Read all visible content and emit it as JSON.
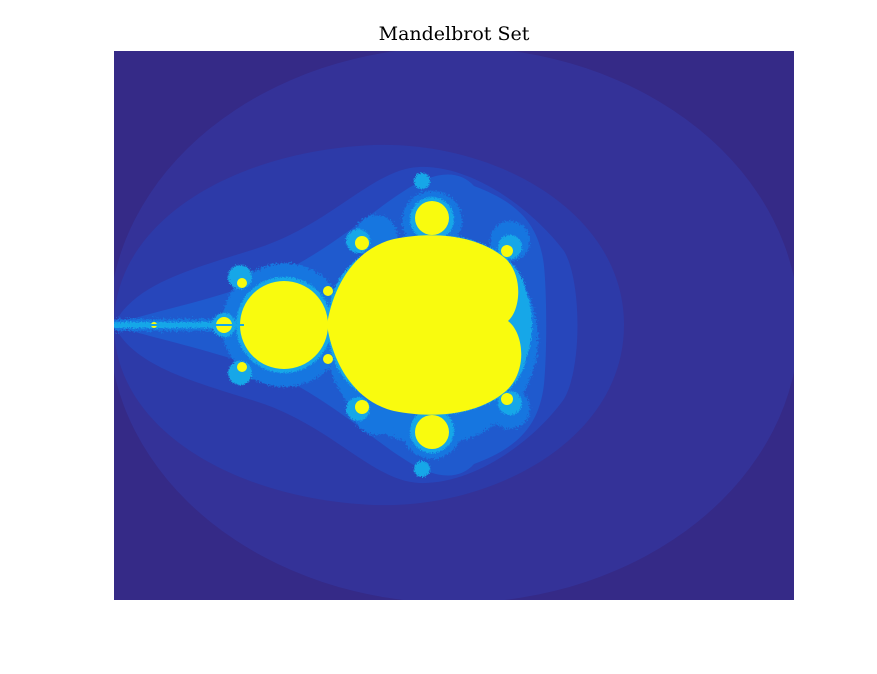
{
  "chart_data": {
    "type": "heatmap",
    "title": "Mandelbrot Set",
    "xlabel": "",
    "ylabel": "",
    "axis_ticks": "none",
    "grid": false,
    "colorbar": false,
    "colormap": "parula",
    "in_set_color": "#f9fb0e",
    "background_color": "#352a87",
    "band_colors": [
      "#352a87",
      "#343298",
      "#2d3aa8",
      "#2746bb",
      "#1f5ace",
      "#1876e0",
      "#14a7e8",
      "#f9fb0e"
    ]
  }
}
